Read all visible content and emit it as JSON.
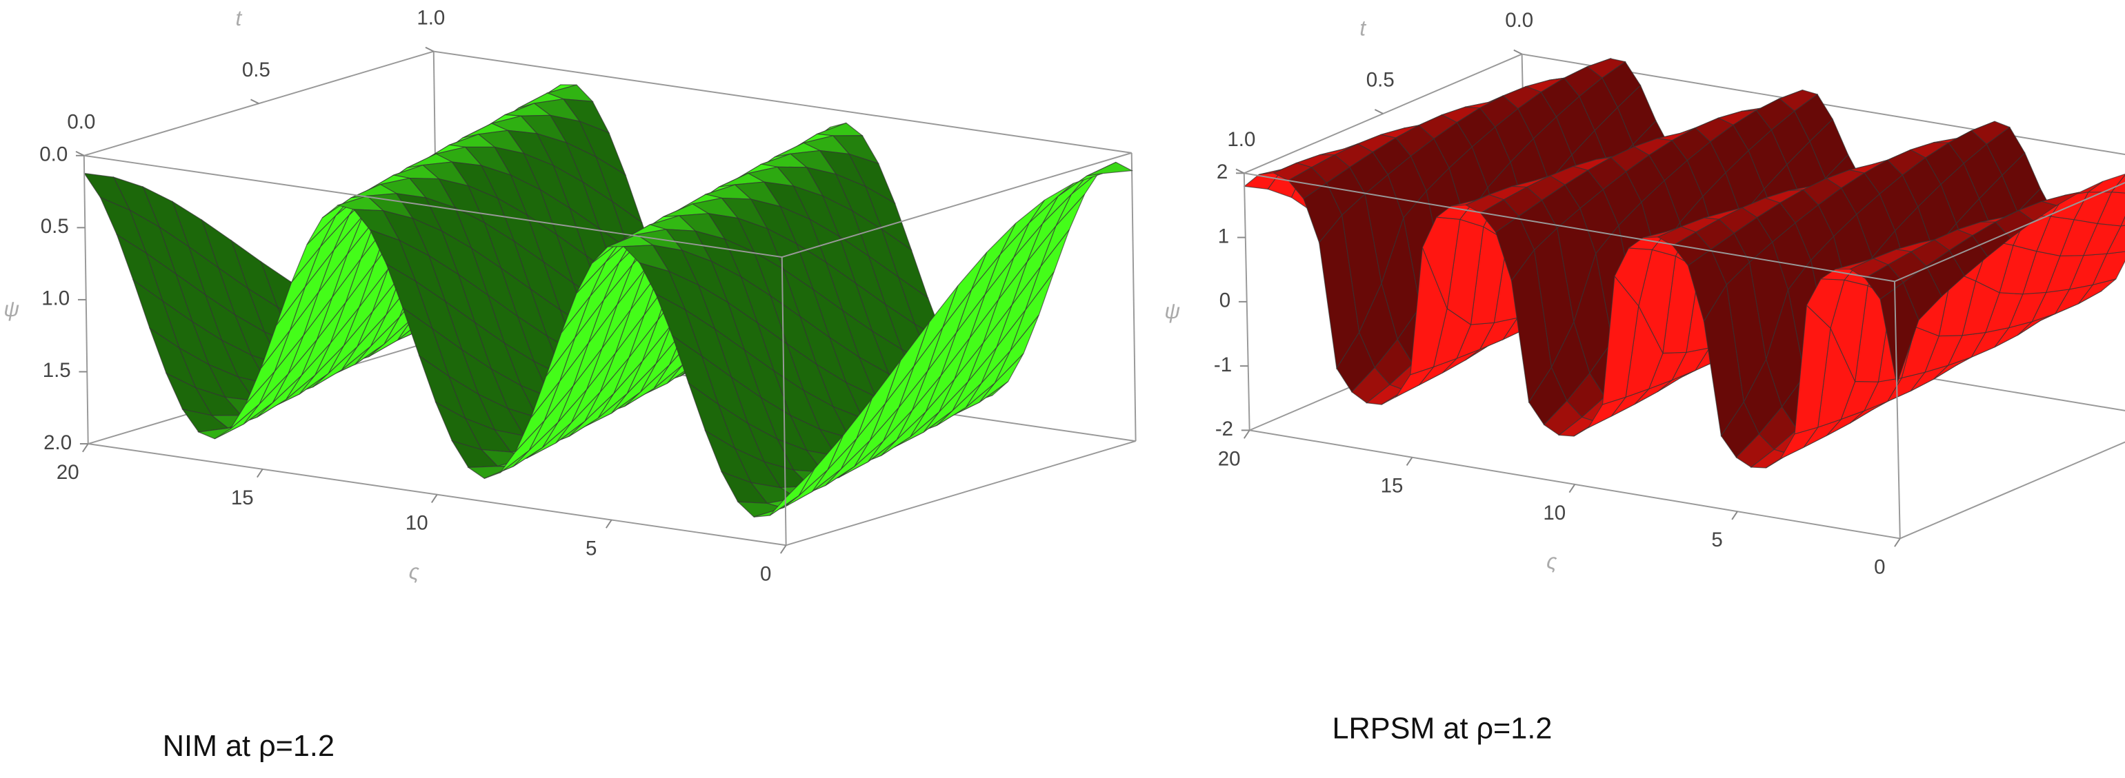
{
  "chart_data": [
    {
      "type": "surface3d",
      "caption": "NIM at  ρ=1.2",
      "x_label": "ς",
      "y_label": "t",
      "z_label": "ψ",
      "color": "#3ee617",
      "xlim": [
        20,
        0
      ],
      "xticks": [
        20,
        15,
        10,
        5,
        0
      ],
      "ylim": [
        0,
        1
      ],
      "yticks": [
        {
          "value": 0,
          "label": "0.0"
        },
        {
          "value": 0.5,
          "label": "0.5"
        },
        {
          "value": 1,
          "label": "1.0"
        }
      ],
      "zlim": [
        2,
        0
      ],
      "zticks": [
        {
          "value": 0,
          "label": "0.0"
        },
        {
          "value": 0.5,
          "label": "0.5"
        },
        {
          "value": 1,
          "label": "1.0"
        },
        {
          "value": 1.5,
          "label": "1.5"
        },
        {
          "value": 2,
          "label": "2.0"
        }
      ]
    },
    {
      "type": "surface3d",
      "caption": "LRPSM at  ρ=1.2",
      "x_label": "ς",
      "y_label": "t",
      "z_label": "ψ",
      "color": "#e8140f",
      "xlim": [
        20,
        0
      ],
      "xticks": [
        20,
        15,
        10,
        5,
        0
      ],
      "ylim": [
        1,
        0
      ],
      "yticks": [
        {
          "value": 0,
          "label": "0.0"
        },
        {
          "value": 0.5,
          "label": "0.5"
        },
        {
          "value": 1,
          "label": "1.0"
        }
      ],
      "zlim": [
        -2,
        2
      ],
      "zticks": [
        2,
        1,
        0,
        -1,
        -2
      ]
    }
  ]
}
